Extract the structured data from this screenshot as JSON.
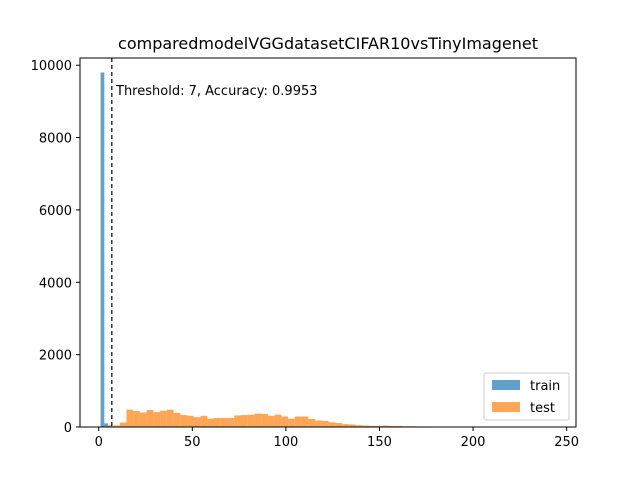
{
  "chart_data": {
    "type": "histogram",
    "title": "comparedmodelVGGdatasetCIFAR10vsTinyImagenet",
    "xlabel": "",
    "ylabel": "",
    "xlim": [
      -10,
      255
    ],
    "ylim": [
      0,
      10200
    ],
    "xticks": [
      0,
      50,
      100,
      150,
      200,
      250
    ],
    "yticks": [
      0,
      2000,
      4000,
      6000,
      8000,
      10000
    ],
    "threshold": 7,
    "annotation": "Threshold: 7, Accuracy: 0.9953",
    "legend_position": "lower-right",
    "series": [
      {
        "name": "train",
        "color": "#1f77b4",
        "bins": [
          {
            "x0": 1,
            "x1": 3,
            "count": 9800
          },
          {
            "x0": 3,
            "x1": 5,
            "count": 100
          },
          {
            "x0": 5,
            "x1": 7,
            "count": 40
          }
        ]
      },
      {
        "name": "test",
        "color": "#ff7f0e",
        "bin_start": 4,
        "bin_width": 3.6,
        "counts": [
          20,
          40,
          120,
          480,
          440,
          400,
          470,
          410,
          450,
          480,
          390,
          330,
          310,
          270,
          310,
          230,
          250,
          250,
          250,
          320,
          330,
          340,
          370,
          360,
          310,
          340,
          290,
          230,
          290,
          290,
          220,
          180,
          170,
          130,
          110,
          80,
          70,
          50,
          40,
          30,
          30,
          40,
          30,
          30,
          20,
          20,
          15,
          15
        ]
      }
    ]
  }
}
